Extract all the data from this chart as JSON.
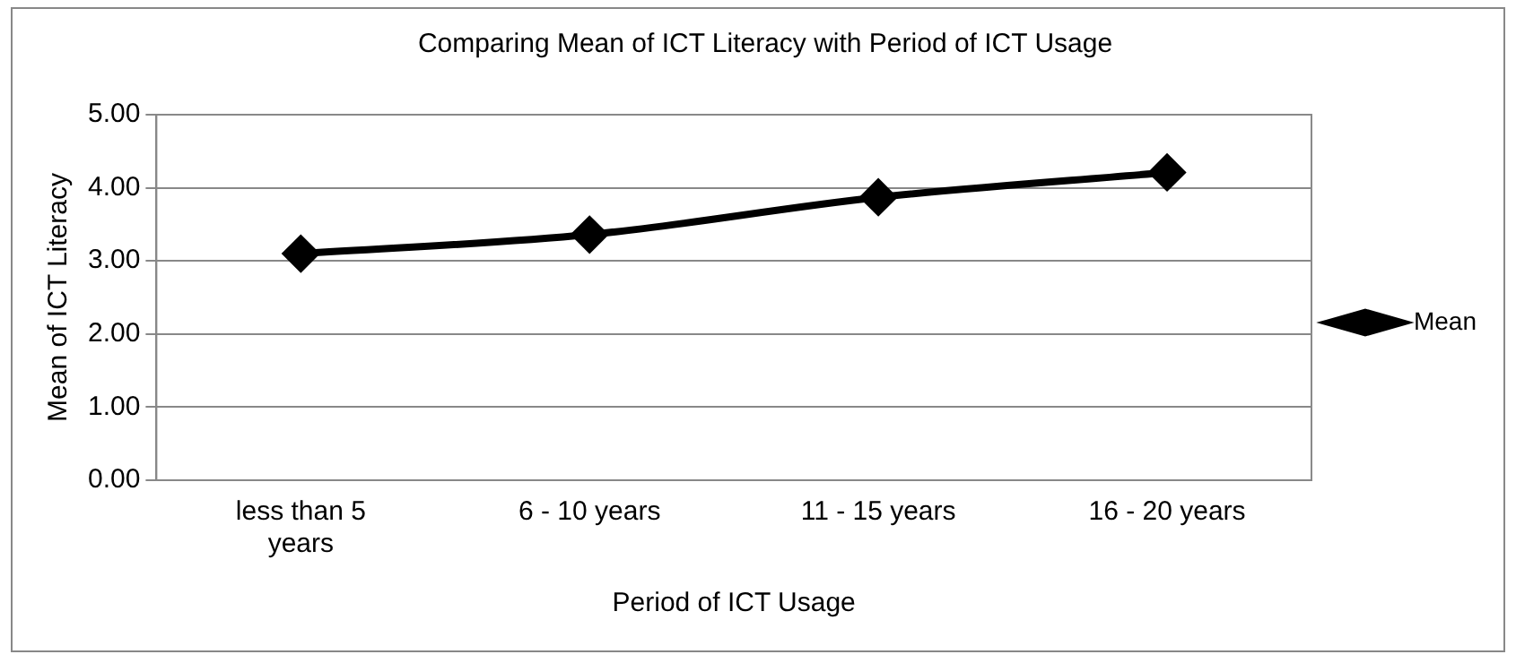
{
  "chart_data": {
    "type": "line",
    "title": "Comparing Mean of ICT Literacy with Period of ICT Usage",
    "xlabel": "Period of ICT Usage",
    "ylabel": "Mean of ICT Literacy",
    "categories": [
      [
        "less than 5",
        "years"
      ],
      "6 - 10 years",
      "11 - 15 years",
      "16 - 20 years"
    ],
    "series": [
      {
        "name": "Mean",
        "color": "#000000",
        "values": [
          3.1,
          3.36,
          3.87,
          4.21
        ]
      }
    ],
    "ylim": [
      0,
      5
    ],
    "yticks": [
      {
        "value": 0,
        "label": "0.00"
      },
      {
        "value": 1,
        "label": "1.00"
      },
      {
        "value": 2,
        "label": "2.00"
      },
      {
        "value": 3,
        "label": "3.00"
      },
      {
        "value": 4,
        "label": "4.00"
      },
      {
        "value": 5,
        "label": "5.00"
      }
    ],
    "grid": "y",
    "legend": "right",
    "marker": "diamond",
    "line_style": "solid"
  }
}
